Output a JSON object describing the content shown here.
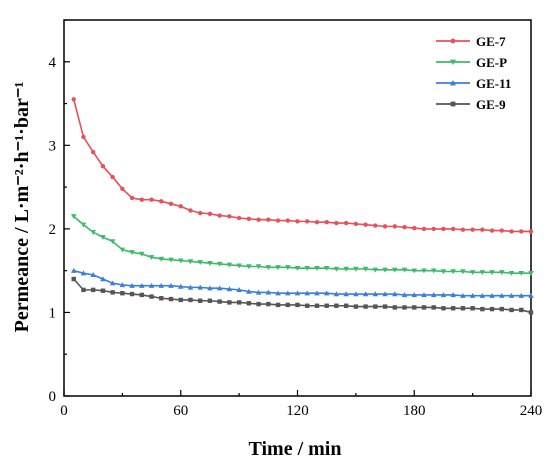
{
  "chart_data": {
    "type": "line",
    "xlabel": "Time / min",
    "ylabel": "Permeance / L·m⁻²·h⁻¹·bar⁻¹",
    "xlim": [
      0,
      240
    ],
    "ylim": [
      0,
      4.5
    ],
    "x_ticks": [
      0,
      60,
      120,
      180,
      240
    ],
    "y_ticks": [
      0,
      1,
      2,
      3,
      4
    ],
    "grid": false,
    "legend_position": "top-right",
    "x": [
      5,
      10,
      15,
      20,
      25,
      30,
      35,
      40,
      45,
      50,
      55,
      60,
      65,
      70,
      75,
      80,
      85,
      90,
      95,
      100,
      105,
      110,
      115,
      120,
      125,
      130,
      135,
      140,
      145,
      150,
      155,
      160,
      165,
      170,
      175,
      180,
      185,
      190,
      195,
      200,
      205,
      210,
      215,
      220,
      225,
      230,
      235,
      240
    ],
    "series": [
      {
        "name": "GE-7",
        "color": "#e8505a",
        "marker": "circle",
        "values": [
          3.55,
          3.1,
          2.92,
          2.75,
          2.62,
          2.48,
          2.37,
          2.35,
          2.35,
          2.33,
          2.3,
          2.27,
          2.22,
          2.19,
          2.18,
          2.16,
          2.15,
          2.13,
          2.12,
          2.11,
          2.11,
          2.1,
          2.1,
          2.09,
          2.09,
          2.08,
          2.08,
          2.07,
          2.07,
          2.06,
          2.05,
          2.04,
          2.03,
          2.03,
          2.02,
          2.01,
          2.0,
          2.0,
          2.0,
          2.0,
          1.99,
          1.99,
          1.99,
          1.98,
          1.98,
          1.97,
          1.97,
          1.97
        ]
      },
      {
        "name": "GE-P",
        "color": "#3dba6a",
        "marker": "triangle-down",
        "values": [
          2.15,
          2.05,
          1.96,
          1.9,
          1.85,
          1.75,
          1.72,
          1.7,
          1.66,
          1.64,
          1.63,
          1.62,
          1.61,
          1.6,
          1.59,
          1.58,
          1.57,
          1.56,
          1.55,
          1.55,
          1.54,
          1.54,
          1.54,
          1.53,
          1.53,
          1.53,
          1.53,
          1.52,
          1.52,
          1.52,
          1.52,
          1.51,
          1.51,
          1.51,
          1.51,
          1.5,
          1.5,
          1.5,
          1.49,
          1.49,
          1.49,
          1.48,
          1.48,
          1.48,
          1.48,
          1.47,
          1.47,
          1.47
        ]
      },
      {
        "name": "GE-11",
        "color": "#3a7fd8",
        "marker": "triangle-up",
        "values": [
          1.5,
          1.47,
          1.45,
          1.4,
          1.35,
          1.33,
          1.32,
          1.32,
          1.32,
          1.32,
          1.32,
          1.31,
          1.3,
          1.3,
          1.29,
          1.29,
          1.28,
          1.27,
          1.25,
          1.24,
          1.24,
          1.23,
          1.23,
          1.23,
          1.23,
          1.23,
          1.23,
          1.22,
          1.22,
          1.22,
          1.22,
          1.22,
          1.22,
          1.22,
          1.21,
          1.21,
          1.21,
          1.21,
          1.21,
          1.21,
          1.2,
          1.2,
          1.2,
          1.2,
          1.2,
          1.2,
          1.2,
          1.2
        ]
      },
      {
        "name": "GE-9",
        "color": "#555555",
        "marker": "square",
        "values": [
          1.4,
          1.27,
          1.27,
          1.26,
          1.24,
          1.23,
          1.22,
          1.21,
          1.19,
          1.17,
          1.16,
          1.15,
          1.15,
          1.14,
          1.14,
          1.13,
          1.12,
          1.12,
          1.11,
          1.1,
          1.1,
          1.09,
          1.09,
          1.09,
          1.08,
          1.08,
          1.08,
          1.08,
          1.08,
          1.07,
          1.07,
          1.07,
          1.07,
          1.06,
          1.06,
          1.06,
          1.06,
          1.06,
          1.05,
          1.05,
          1.05,
          1.05,
          1.04,
          1.04,
          1.04,
          1.03,
          1.03,
          1.0
        ]
      }
    ]
  }
}
